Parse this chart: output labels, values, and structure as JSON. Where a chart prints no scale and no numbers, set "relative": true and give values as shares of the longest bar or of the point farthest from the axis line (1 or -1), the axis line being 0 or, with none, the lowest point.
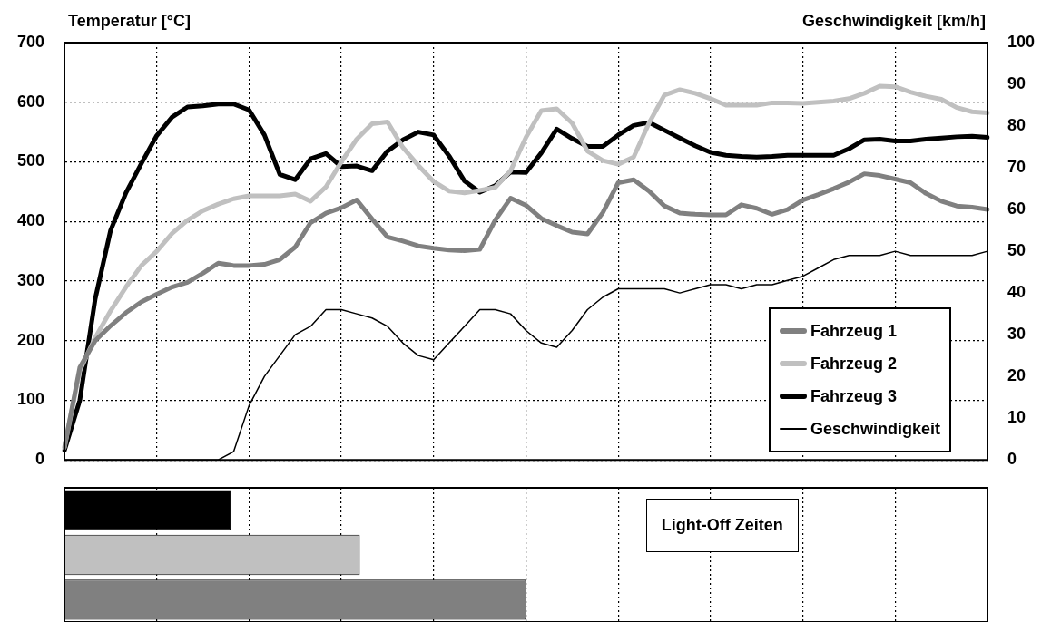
{
  "chart_data": [
    {
      "type": "line",
      "ylabel": "Temperatur [°C]",
      "y2label": "Geschwindigkeit [km/h]",
      "categories": [
        null,
        null,
        null,
        null,
        null,
        null,
        null,
        null,
        null,
        null,
        null,
        null,
        null,
        null,
        null,
        null,
        null,
        null,
        null,
        null,
        null,
        null,
        null,
        null,
        null,
        null,
        null,
        null,
        null,
        null,
        null,
        null,
        null,
        null,
        null,
        null,
        null,
        null,
        null,
        null,
        null,
        null,
        null,
        null,
        null,
        null,
        null,
        null,
        null,
        null,
        null,
        null,
        null,
        null,
        null,
        null,
        null,
        null,
        null,
        null,
        null
      ],
      "series": [
        {
          "name": "Fahrzeug 1",
          "color": "#808080",
          "values": [
            21,
            155,
            200,
            225,
            247,
            265,
            278,
            290,
            298,
            313,
            330,
            326,
            326,
            328,
            336,
            357,
            398,
            414,
            423,
            436,
            404,
            374,
            367,
            359,
            355,
            352,
            351,
            353,
            402,
            439,
            427,
            405,
            393,
            382,
            379,
            415,
            465,
            470,
            451,
            426,
            414,
            412,
            411,
            411,
            428,
            422,
            412,
            420,
            436,
            445,
            455,
            466,
            480,
            477,
            471,
            465,
            447,
            434,
            426,
            424,
            420
          ]
        },
        {
          "name": "Fahrzeug 2",
          "color": "#c0c0c0",
          "values": [
            21,
            150,
            205,
            250,
            290,
            326,
            350,
            380,
            402,
            418,
            429,
            438,
            443,
            443,
            443,
            446,
            434,
            458,
            500,
            538,
            564,
            567,
            524,
            494,
            467,
            451,
            448,
            452,
            457,
            485,
            541,
            586,
            589,
            565,
            518,
            502,
            496,
            508,
            565,
            612,
            621,
            615,
            606,
            595,
            595,
            595,
            599,
            599,
            598,
            600,
            602,
            606,
            615,
            627,
            626,
            617,
            610,
            605,
            591,
            584,
            582
          ]
        },
        {
          "name": "Fahrzeug 3",
          "color": "#000000",
          "values": [
            16,
            100,
            270,
            385,
            448,
            497,
            544,
            575,
            592,
            594,
            597,
            597,
            587,
            545,
            479,
            470,
            505,
            514,
            492,
            493,
            485,
            518,
            537,
            550,
            545,
            510,
            468,
            449,
            460,
            483,
            482,
            515,
            555,
            539,
            526,
            526,
            545,
            561,
            566,
            553,
            540,
            527,
            516,
            511,
            509,
            508,
            509,
            511,
            511,
            511,
            511,
            522,
            537,
            538,
            535,
            535,
            538,
            540,
            542,
            543,
            541
          ]
        },
        {
          "name": "Geschwindigkeit",
          "color": "#000000",
          "axis": "y2",
          "values": [
            0,
            0,
            0,
            0,
            0,
            0,
            0,
            0,
            0,
            0,
            0,
            2,
            13,
            20,
            25,
            30,
            32,
            36,
            36,
            35,
            34,
            32,
            28,
            25,
            24,
            28,
            32,
            36,
            36,
            35,
            31,
            28,
            27,
            31,
            36,
            39,
            41,
            41,
            41,
            41,
            40,
            41,
            42,
            42,
            41,
            42,
            42,
            43,
            44,
            46,
            48,
            49,
            49,
            49,
            50,
            49,
            49,
            49,
            49,
            49,
            50
          ]
        }
      ],
      "ylim": [
        0,
        700
      ],
      "yticks": [
        0,
        100,
        200,
        300,
        400,
        500,
        600,
        700
      ],
      "y2lim": [
        0,
        100
      ],
      "y2ticks": [
        0,
        10,
        20,
        30,
        40,
        50,
        60,
        70,
        80,
        90,
        100
      ],
      "grid": true,
      "legend": "bottom right",
      "marker": "none",
      "line_style": "solid"
    },
    {
      "type": "bar",
      "orientation": "horizontal",
      "relative": true,
      "categories": [
        null,
        null,
        null
      ],
      "values": [
        0.36,
        0.64,
        1
      ],
      "colors": [
        "#000000",
        "#c0c0c0",
        "#808080"
      ],
      "grid": "x",
      "annotations": [
        "Light-Off Zeiten"
      ]
    }
  ]
}
